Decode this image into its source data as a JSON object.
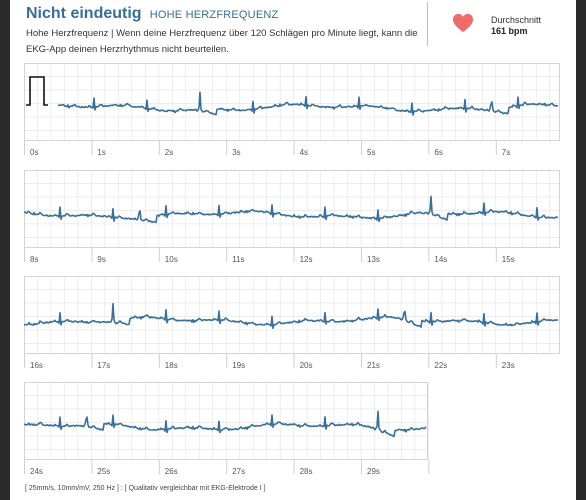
{
  "header": {
    "title": "Nicht eindeutig",
    "subtitle": "HOHE HERZFREQUENZ",
    "description": "Hohe Herzfrequenz | Wenn deine Herzfrequenz über 120 Schlägen pro Minute liegt, kann die EKG-App deinen Herzrhythmus nicht beurteilen."
  },
  "average": {
    "label": "Durchschnitt",
    "value": "161 bpm",
    "icon": "heart-icon"
  },
  "ecg": {
    "line_color": "#3a6f98",
    "grid_color": "#e2e2e2",
    "heart_color": "#ec6c6c",
    "strips": [
      {
        "ticks": [
          "0s",
          "1s",
          "2s",
          "3s",
          "4s",
          "5s",
          "6s",
          "7s"
        ]
      },
      {
        "ticks": [
          "8s",
          "9s",
          "10s",
          "11s",
          "12s",
          "13s",
          "14s",
          "15s"
        ]
      },
      {
        "ticks": [
          "16s",
          "17s",
          "18s",
          "19s",
          "20s",
          "21s",
          "22s",
          "23s"
        ]
      },
      {
        "ticks": [
          "24s",
          "25s",
          "26s",
          "27s",
          "28s",
          "29s",
          "30s"
        ]
      }
    ]
  },
  "footer": {
    "text": "[ 25mm/s, 10mm/mV, 250 Hz ] : [ Qualitativ vergleichbar mit EKG-Elektrode I ]"
  }
}
